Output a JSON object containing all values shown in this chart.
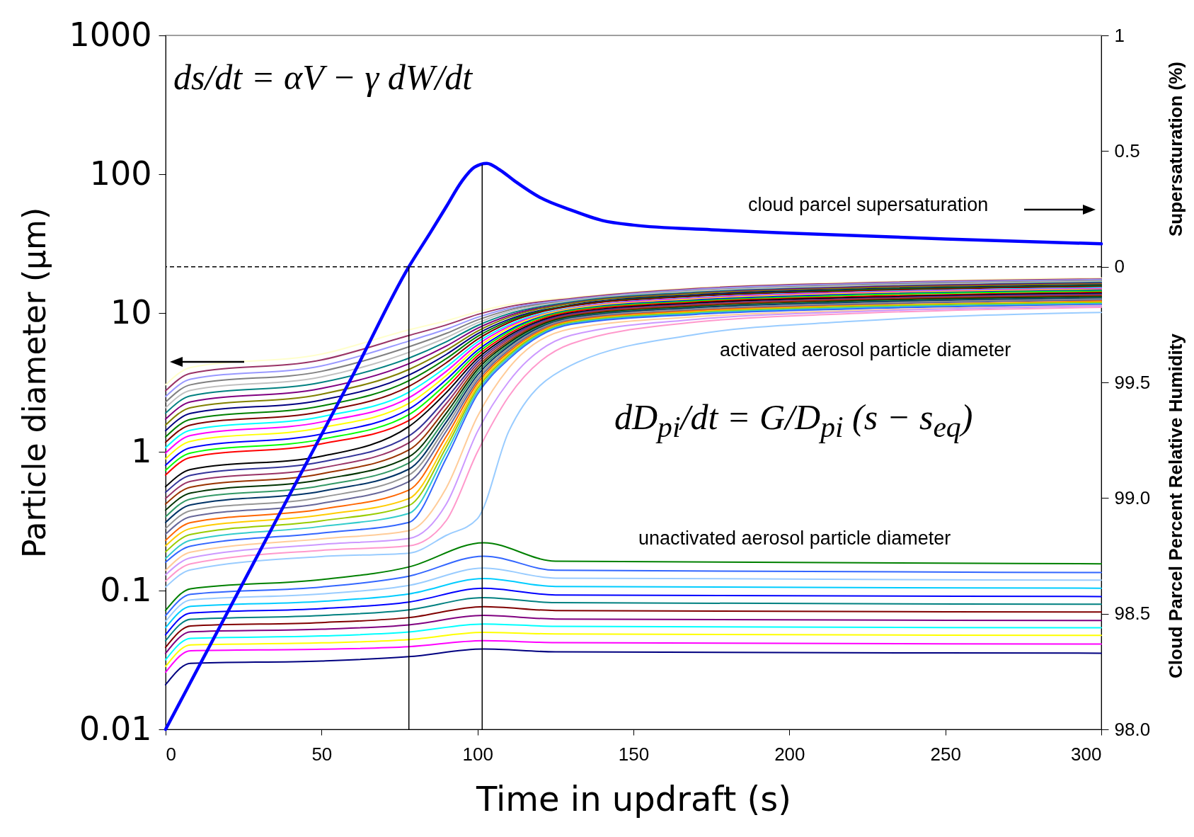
{
  "chart_data": {
    "type": "line",
    "xlabel": "Time in updraft (s)",
    "ylabel": "Particle diameter (µm)",
    "y2label": "Supersaturation (%)",
    "xlim": [
      0,
      300
    ],
    "xticks": [
      0,
      50,
      100,
      150,
      200,
      250,
      300
    ],
    "ylim": [
      0.01,
      1000
    ],
    "yticks": [
      0.01,
      0.1,
      1,
      10,
      100,
      1000
    ],
    "log": "y",
    "y2lim": [
      -2,
      1
    ],
    "y2ticks": [
      0,
      0.5,
      1
    ],
    "y3label": "Cloud Parcel Percent Relative Humidity",
    "y3lim": [
      98,
      101
    ],
    "y3ticks": [
      {
        "value": 98,
        "label": "98.0"
      },
      98.5,
      {
        "value": 99,
        "label": "99.0"
      },
      99.5
    ],
    "x": [
      0,
      8,
      50,
      78,
      90,
      100,
      110,
      130,
      170,
      220,
      300
    ],
    "series": [
      {
        "color": "#ffffcc",
        "values": [
          3.04,
          4.05,
          5.06,
          7.57,
          8.79,
          10.2,
          11.5,
          12.9,
          15.2,
          16.6,
          17.9
        ]
      },
      {
        "color": "#993366",
        "values": [
          2.75,
          3.67,
          4.59,
          6.89,
          8.2,
          9.75,
          11.1,
          12.7,
          15.0,
          16.4,
          17.6
        ]
      },
      {
        "color": "#9999ff",
        "values": [
          2.5,
          3.33,
          4.16,
          6.28,
          7.65,
          9.31,
          10.8,
          12.5,
          14.8,
          16.2,
          17.4
        ]
      },
      {
        "color": "#808080",
        "values": [
          2.28,
          3.04,
          3.8,
          5.71,
          7.13,
          8.9,
          10.5,
          12.3,
          14.5,
          15.9,
          17.1
        ]
      },
      {
        "color": "#c0c0c0",
        "values": [
          2.08,
          2.77,
          3.46,
          5.2,
          6.65,
          8.5,
          10.2,
          12.2,
          14.4,
          15.7,
          16.9
        ]
      },
      {
        "color": "#008080",
        "values": [
          1.9,
          2.53,
          3.16,
          4.73,
          6.2,
          8.12,
          9.87,
          12.0,
          14.1,
          15.4,
          16.6
        ]
      },
      {
        "color": "#800080",
        "values": [
          1.72,
          2.29,
          2.86,
          4.31,
          5.78,
          7.76,
          9.57,
          11.8,
          13.9,
          15.3,
          16.4
        ]
      },
      {
        "color": "#808000",
        "values": [
          1.56,
          2.08,
          2.6,
          3.92,
          5.39,
          7.41,
          9.31,
          11.7,
          13.8,
          15.1,
          16.2
        ]
      },
      {
        "color": "#000080",
        "values": [
          1.42,
          1.89,
          2.36,
          3.57,
          5.03,
          7.08,
          8.98,
          11.4,
          13.5,
          14.8,
          15.9
        ]
      },
      {
        "color": "#008000",
        "values": [
          1.28,
          1.71,
          2.14,
          3.25,
          4.69,
          6.77,
          8.75,
          11.3,
          13.3,
          14.6,
          15.7
        ]
      },
      {
        "color": "#800000",
        "values": [
          1.17,
          1.56,
          1.95,
          2.96,
          4.38,
          6.47,
          8.51,
          11.2,
          13.2,
          14.4,
          15.5
        ]
      },
      {
        "color": "#00ffff",
        "values": [
          1.07,
          1.43,
          1.79,
          2.69,
          4.08,
          6.18,
          8.21,
          10.9,
          12.9,
          14.1,
          15.2
        ]
      },
      {
        "color": "#ff00ff",
        "values": [
          0.98,
          1.31,
          1.64,
          2.45,
          3.8,
          5.9,
          7.98,
          10.8,
          12.8,
          14.0,
          15.0
        ]
      },
      {
        "color": "#ffff00",
        "values": [
          0.89,
          1.19,
          1.49,
          2.23,
          3.55,
          5.64,
          7.77,
          10.7,
          12.6,
          13.8,
          14.8
        ]
      },
      {
        "color": "#0000ff",
        "values": [
          0.8,
          1.07,
          1.34,
          2.03,
          3.31,
          5.39,
          7.52,
          10.5,
          12.4,
          13.6,
          14.6
        ]
      },
      {
        "color": "#00ff00",
        "values": [
          0.735,
          0.98,
          1.23,
          1.85,
          3.09,
          5.15,
          7.32,
          10.4,
          12.2,
          13.4,
          14.4
        ]
      },
      {
        "color": "#ff0000",
        "values": [
          0.68,
          0.91,
          1.14,
          1.68,
          2.88,
          4.92,
          7.08,
          10.2,
          12.0,
          13.1,
          14.1
        ]
      },
      {
        "color": "#000000",
        "values": [
          0.56,
          0.745,
          0.93,
          1.52,
          2.67,
          4.7,
          6.86,
          10.0,
          11.8,
          12.9,
          13.9
        ]
      },
      {
        "color": "#333399",
        "values": [
          0.51,
          0.676,
          0.845,
          1.3,
          2.42,
          4.49,
          6.65,
          9.86,
          11.6,
          12.7,
          13.7
        ]
      },
      {
        "color": "#993366",
        "values": [
          0.46,
          0.612,
          0.765,
          1.16,
          2.23,
          4.29,
          6.46,
          9.72,
          11.5,
          12.6,
          13.5
        ]
      },
      {
        "color": "#993300",
        "values": [
          0.42,
          0.556,
          0.695,
          1.03,
          2.05,
          4.1,
          6.27,
          9.58,
          11.3,
          12.4,
          13.3
        ]
      },
      {
        "color": "#003300",
        "values": [
          0.38,
          0.504,
          0.63,
          0.92,
          1.9,
          3.92,
          6.08,
          9.43,
          11.1,
          12.2,
          13.1
        ]
      },
      {
        "color": "#339966",
        "values": [
          0.34,
          0.457,
          0.57,
          0.83,
          1.76,
          3.74,
          5.89,
          9.29,
          11.0,
          12.0,
          12.9
        ]
      },
      {
        "color": "#003366",
        "values": [
          0.31,
          0.414,
          0.52,
          0.75,
          1.64,
          3.57,
          5.74,
          9.22,
          10.9,
          11.9,
          12.8
        ]
      },
      {
        "color": "#969696",
        "values": [
          0.28,
          0.376,
          0.47,
          0.68,
          1.52,
          3.41,
          5.56,
          9.07,
          10.7,
          11.7,
          12.6
        ]
      },
      {
        "color": "#666699",
        "values": [
          0.255,
          0.34,
          0.425,
          0.61,
          1.41,
          3.26,
          5.4,
          8.93,
          10.5,
          11.5,
          12.4
        ]
      },
      {
        "color": "#ff6600",
        "values": [
          0.23,
          0.309,
          0.386,
          0.53,
          1.29,
          3.12,
          5.23,
          8.78,
          10.4,
          11.3,
          12.2
        ]
      },
      {
        "color": "#ffcc00",
        "values": [
          0.21,
          0.28,
          0.35,
          0.46,
          1.17,
          2.98,
          5.07,
          8.64,
          10.2,
          11.2,
          12.0
        ]
      },
      {
        "color": "#99cc00",
        "values": [
          0.19,
          0.254,
          0.318,
          0.41,
          1.08,
          2.85,
          4.94,
          8.57,
          10.1,
          11.1,
          11.9
        ]
      },
      {
        "color": "#33cccc",
        "values": [
          0.17,
          0.23,
          0.29,
          0.36,
          0.99,
          2.72,
          4.79,
          8.42,
          9.95,
          10.9,
          11.7
        ]
      },
      {
        "color": "#3366ff",
        "values": [
          0.16,
          0.209,
          0.26,
          0.31,
          0.9,
          2.6,
          4.64,
          8.28,
          9.78,
          10.7,
          11.5
        ]
      },
      {
        "color": "#ffcc99",
        "values": [
          0.14,
          0.189,
          0.236,
          0.27,
          0.55,
          1.8,
          4.0,
          7.7,
          9.4,
          10.4,
          11.3
        ]
      },
      {
        "color": "#cc99ff",
        "values": [
          0.13,
          0.172,
          0.215,
          0.237,
          0.42,
          1.4,
          3.2,
          6.9,
          9.0,
          10.2,
          11.2
        ]
      },
      {
        "color": "#ff99cc",
        "values": [
          0.117,
          0.156,
          0.195,
          0.21,
          0.32,
          1.0,
          2.5,
          6.0,
          8.6,
          9.9,
          11.0
        ]
      },
      {
        "color": "#99ccff",
        "values": [
          0.106,
          0.141,
          0.176,
          0.186,
          0.25,
          0.33,
          1.4,
          4.2,
          7.0,
          8.7,
          10.1
        ]
      },
      {
        "color": "#008000",
        "x": [
          0,
          8,
          50,
          78,
          102,
          125,
          300
        ],
        "values": [
          0.072,
          0.103,
          0.12,
          0.148,
          0.221,
          0.163,
          0.156
        ]
      },
      {
        "color": "#3366ff",
        "x": [
          0,
          8,
          50,
          78,
          102,
          125,
          300
        ],
        "values": [
          0.066,
          0.094,
          0.106,
          0.127,
          0.177,
          0.14,
          0.135
        ]
      },
      {
        "color": "#99ccff",
        "x": [
          0,
          8,
          50,
          78,
          102,
          125,
          300
        ],
        "values": [
          0.06,
          0.0855,
          0.0945,
          0.109,
          0.145,
          0.123,
          0.119
        ]
      },
      {
        "color": "#00ccff",
        "x": [
          0,
          8,
          50,
          78,
          102,
          125,
          300
        ],
        "values": [
          0.054,
          0.0769,
          0.0836,
          0.0946,
          0.122,
          0.107,
          0.104
        ]
      },
      {
        "color": "#0000ff",
        "x": [
          0,
          8,
          50,
          78,
          102,
          125,
          300
        ],
        "values": [
          0.048,
          0.0689,
          0.0742,
          0.0827,
          0.104,
          0.093,
          0.0906
        ]
      },
      {
        "color": "#008080",
        "x": [
          0,
          8,
          50,
          78,
          102,
          125,
          300
        ],
        "values": [
          0.0435,
          0.0621,
          0.0661,
          0.0727,
          0.0889,
          0.0818,
          0.0797
        ]
      },
      {
        "color": "#800000",
        "x": [
          0,
          8,
          50,
          78,
          102,
          125,
          300
        ],
        "values": [
          0.039,
          0.0556,
          0.0588,
          0.0639,
          0.0766,
          0.0718,
          0.0701
        ]
      },
      {
        "color": "#800080",
        "x": [
          0,
          8,
          50,
          78,
          102,
          125,
          300
        ],
        "values": [
          0.0353,
          0.0504,
          0.0527,
          0.0566,
          0.0662,
          0.0624,
          0.0609
        ]
      },
      {
        "color": "#00ffff",
        "x": [
          0,
          8,
          50,
          78,
          102,
          125,
          300
        ],
        "values": [
          0.0317,
          0.0453,
          0.0471,
          0.0503,
          0.0574,
          0.0553,
          0.054
        ]
      },
      {
        "color": "#ffff00",
        "x": [
          0,
          8,
          50,
          78,
          102,
          125,
          300
        ],
        "values": [
          0.0284,
          0.0406,
          0.042,
          0.0443,
          0.05,
          0.0487,
          0.0476
        ]
      },
      {
        "color": "#ff00ff",
        "x": [
          0,
          8,
          50,
          78,
          102,
          125,
          300
        ],
        "values": [
          0.0258,
          0.0368,
          0.0378,
          0.0394,
          0.0435,
          0.0422,
          0.0412
        ]
      },
      {
        "color": "#000080",
        "x": [
          0,
          8,
          50,
          78,
          102,
          125,
          300
        ],
        "values": [
          0.021,
          0.0299,
          0.0311,
          0.0334,
          0.0379,
          0.0362,
          0.0354
        ]
      },
      {
        "color": "#0000ff",
        "axis": "y2",
        "x": [
          0,
          20,
          40,
          60,
          78,
          85,
          90,
          95,
          99,
          103,
          107,
          112,
          120,
          130,
          140,
          150,
          175,
          200,
          250,
          300
        ],
        "values": [
          -2,
          -1.49,
          -0.98,
          -0.47,
          0,
          0.15,
          0.26,
          0.37,
          0.43,
          0.447,
          0.42,
          0.37,
          0.3,
          0.245,
          0.2,
          0.18,
          0.16,
          0.145,
          0.12,
          0.099
        ]
      },
      {
        "color": "#000000",
        "axis": "y2",
        "x": [
          78,
          78
        ],
        "values": [
          -2,
          0
        ]
      },
      {
        "color": "#000000",
        "axis": "y2",
        "x": [
          101.5,
          101.5
        ],
        "values": [
          -2,
          0.44
        ]
      }
    ],
    "ref_lines": [
      {
        "axis": "y2",
        "value": 0,
        "line_style": "dashed",
        "color": "#000000"
      }
    ],
    "annotations": [
      "ds/dt = αV − γ dW/dt",
      "cloud parcel supersaturation",
      "activated aerosol particle diameter",
      "dD$_{pi}$/dt = G/D$_{pi}$ (s − s$_{eq}$)",
      "unactivated aerosol particle diameter"
    ]
  }
}
